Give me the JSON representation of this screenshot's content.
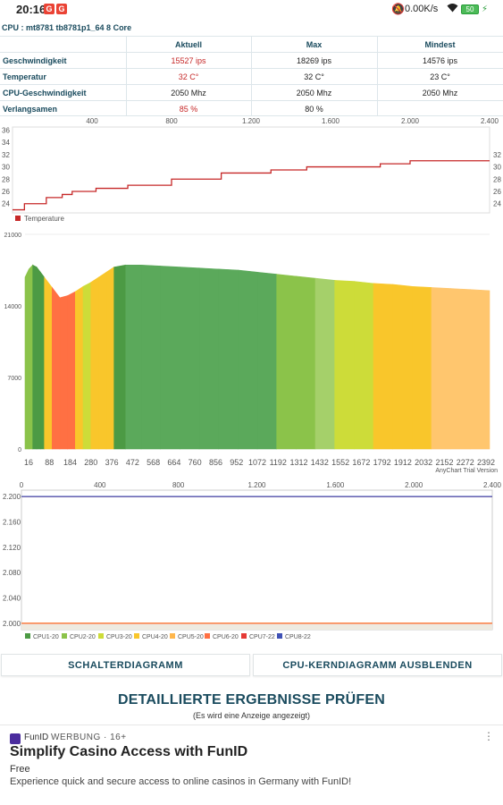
{
  "status_bar": {
    "time": "20:16",
    "notification_icons": [
      "G",
      "G"
    ],
    "net_speed": "0.00K/s",
    "battery": "50"
  },
  "cpu_info": "CPU : mt8781 tb8781p1_64 8 Core",
  "stats_table": {
    "headers": [
      "Aktuell",
      "Max",
      "Mindest"
    ],
    "rows": [
      {
        "label": "Geschwindigkeit",
        "values": [
          "15527 ips",
          "18269 ips",
          "14576 ips"
        ],
        "highlight": true
      },
      {
        "label": "Temperatur",
        "values": [
          "32 C°",
          "32 C°",
          "23 C°"
        ],
        "highlight": true
      },
      {
        "label": "CPU-Geschwindigkeit",
        "values": [
          "2050 Mhz",
          "2050 Mhz",
          "2050 Mhz"
        ],
        "highlight": false
      },
      {
        "label": "Verlangsamen",
        "values": [
          "85 %",
          "80 %",
          ""
        ],
        "highlight": true
      }
    ]
  },
  "chart_data": [
    {
      "type": "line",
      "x_ticks_top": [
        "400",
        "800",
        "1.200",
        "1.600",
        "2.000",
        "2.400"
      ],
      "y_ticks_left": [
        "36",
        "34",
        "32",
        "30",
        "28",
        "26",
        "24"
      ],
      "y_ticks_right": [
        "32",
        "30",
        "28",
        "26",
        "24"
      ],
      "xlim": [
        0,
        2400
      ],
      "ylim": [
        22.5,
        36.5
      ],
      "series": [
        {
          "name": "Temperature",
          "color": "#c62828",
          "x": [
            0,
            60,
            170,
            250,
            300,
            420,
            580,
            800,
            1050,
            1300,
            1480,
            1850,
            2000,
            2400
          ],
          "y": [
            23,
            24,
            25,
            25.5,
            26,
            26.5,
            27,
            28,
            29,
            29.5,
            30,
            30.5,
            31,
            31
          ]
        }
      ]
    },
    {
      "type": "area",
      "y_ticks": [
        "21000",
        "14000",
        "7000",
        "0"
      ],
      "x_ticks": [
        "16",
        "88",
        "184",
        "280",
        "376",
        "472",
        "568",
        "664",
        "760",
        "856",
        "952",
        "1072",
        "1192",
        "1312",
        "1432",
        "1552",
        "1672",
        "1792",
        "1912",
        "2032",
        "2152",
        "2272",
        "2392"
      ],
      "ylim": [
        0,
        21000
      ],
      "xlim": [
        0,
        2400
      ],
      "watermark": "AnyChart Trial Version",
      "x": [
        0,
        20,
        40,
        60,
        80,
        100,
        140,
        180,
        220,
        260,
        300,
        340,
        380,
        420,
        460,
        520,
        600,
        700,
        800,
        900,
        1000,
        1100,
        1200,
        1300,
        1400,
        1500,
        1600,
        1700,
        1800,
        1900,
        2000,
        2100,
        2200,
        2300,
        2400
      ],
      "values": [
        16800,
        17600,
        18000,
        17800,
        17300,
        16800,
        15800,
        14800,
        15000,
        15400,
        15900,
        16300,
        16800,
        17300,
        17800,
        18000,
        18000,
        17900,
        17800,
        17700,
        17600,
        17500,
        17300,
        17100,
        16900,
        16700,
        16500,
        16400,
        16200,
        16100,
        15900,
        15800,
        15700,
        15600,
        15500
      ]
    },
    {
      "type": "line",
      "x_ticks_top": [
        "0",
        "400",
        "800",
        "1.200",
        "1.600",
        "2.000",
        "2.400"
      ],
      "y_ticks": [
        "2.200",
        "2.160",
        "2.120",
        "2.080",
        "2.040",
        "2.000"
      ],
      "ylim": [
        1990,
        2210
      ],
      "xlim": [
        0,
        2400
      ],
      "series": [
        {
          "name": "CPU1-20",
          "color": "#4c9a44",
          "constant": 2000
        },
        {
          "name": "CPU2-20",
          "color": "#8bc34a",
          "constant": 2000
        },
        {
          "name": "CPU3-20",
          "color": "#cddc39",
          "constant": 2000
        },
        {
          "name": "CPU4-20",
          "color": "#f9c62b",
          "constant": 2000
        },
        {
          "name": "CPU5-20",
          "color": "#ffb74d",
          "constant": 2000
        },
        {
          "name": "CPU6-20",
          "color": "#ff7043",
          "constant": 2000
        },
        {
          "name": "CPU7-22",
          "color": "#e53935",
          "constant": 2200
        },
        {
          "name": "CPU8-22",
          "color": "#3f51b5",
          "constant": 2200
        }
      ]
    }
  ],
  "buttons": {
    "switch_chart": "SCHALTERDIAGRAMM",
    "hide_core_chart": "CPU-KERNDIAGRAMM AUSBLENDEN"
  },
  "details": {
    "title": "DETAILLIERTE ERGEBNISSE PRÜFEN",
    "subtitle": "(Es wird eine Anzeige angezeigt)"
  },
  "ad": {
    "brand": "FunID",
    "label": "WERBUNG · 16+",
    "headline": "Simplify Casino Access with FunID",
    "price": "Free",
    "description": "Experience quick and secure access to online casinos in Germany with FunID!"
  }
}
